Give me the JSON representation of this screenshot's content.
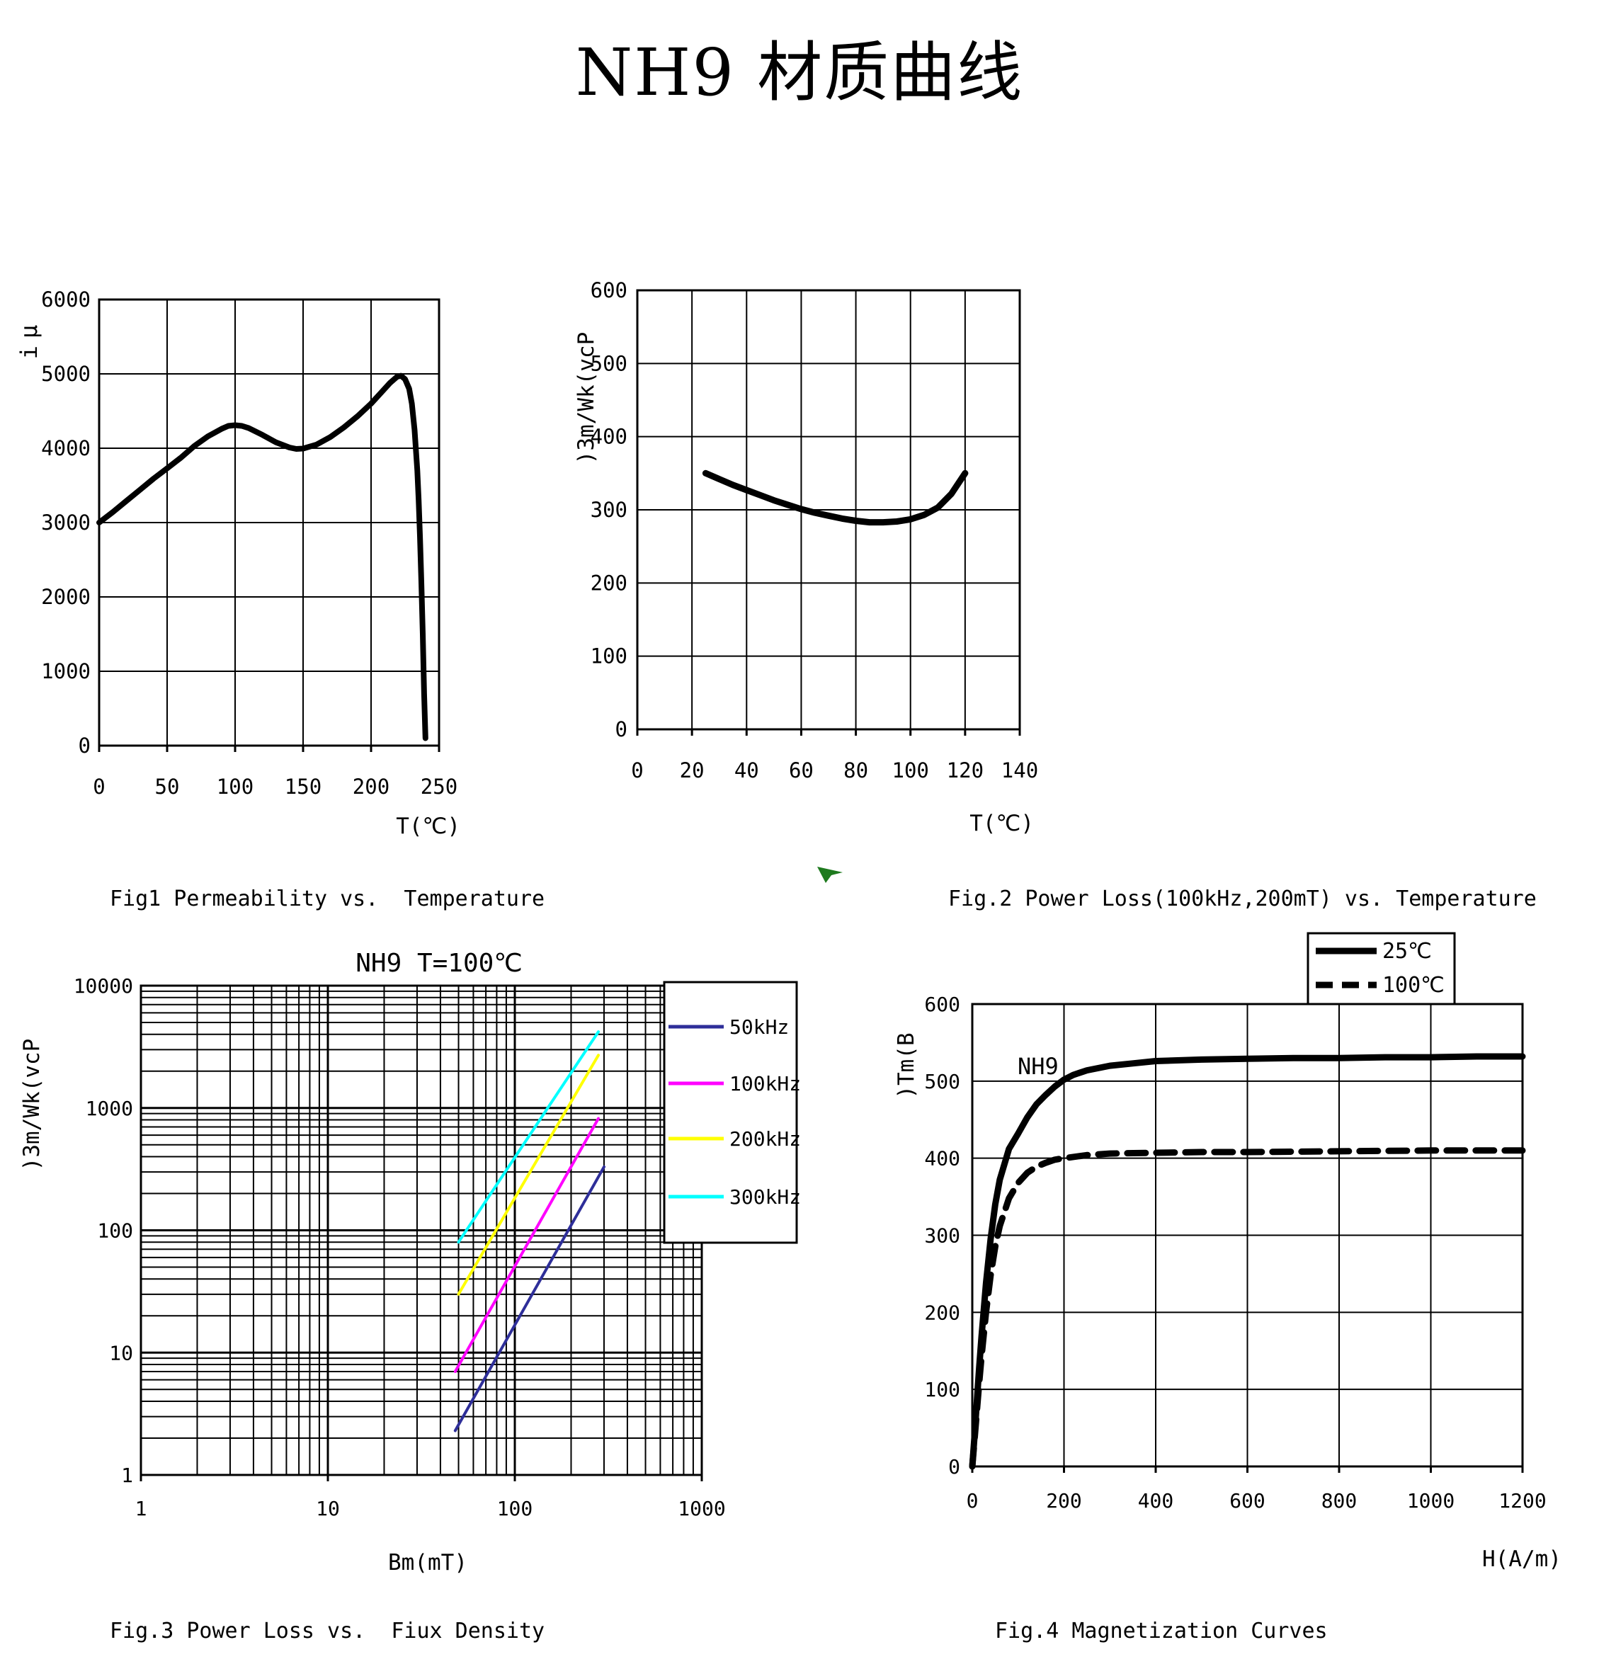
{
  "page": {
    "title": "NH9 材质曲线"
  },
  "cursor": {
    "name": "green-paste-cursor",
    "color": "#1e7a1e"
  },
  "chart_data": [
    {
      "type": "line",
      "title": "",
      "caption": "Fig1 Permeability vs.  Temperature",
      "xlabel": "T(℃)",
      "ylabel": "μi",
      "xlim": [
        0,
        250
      ],
      "ylim": [
        0,
        6000
      ],
      "xticks": [
        0,
        50,
        100,
        150,
        200,
        250
      ],
      "yticks": [
        0,
        1000,
        2000,
        3000,
        4000,
        5000,
        6000
      ],
      "grid": true,
      "legend_position": "none",
      "series": [
        {
          "name": "ui",
          "color": "#000000",
          "style": "solid",
          "points": [
            [
              0,
              3000
            ],
            [
              10,
              3140
            ],
            [
              20,
              3290
            ],
            [
              30,
              3440
            ],
            [
              40,
              3590
            ],
            [
              50,
              3730
            ],
            [
              60,
              3870
            ],
            [
              70,
              4030
            ],
            [
              80,
              4160
            ],
            [
              90,
              4260
            ],
            [
              95,
              4300
            ],
            [
              100,
              4310
            ],
            [
              105,
              4300
            ],
            [
              110,
              4270
            ],
            [
              120,
              4180
            ],
            [
              130,
              4080
            ],
            [
              140,
              4010
            ],
            [
              145,
              3990
            ],
            [
              150,
              3995
            ],
            [
              160,
              4050
            ],
            [
              170,
              4150
            ],
            [
              180,
              4280
            ],
            [
              190,
              4430
            ],
            [
              200,
              4600
            ],
            [
              208,
              4760
            ],
            [
              214,
              4880
            ],
            [
              219,
              4960
            ],
            [
              222,
              4975
            ],
            [
              225,
              4930
            ],
            [
              228,
              4800
            ],
            [
              230,
              4600
            ],
            [
              232,
              4250
            ],
            [
              234,
              3700
            ],
            [
              235,
              3300
            ],
            [
              236,
              2800
            ],
            [
              237,
              2200
            ],
            [
              238,
              1500
            ],
            [
              239,
              700
            ],
            [
              240,
              100
            ]
          ]
        }
      ]
    },
    {
      "type": "line",
      "title": "",
      "caption": "Fig.2 Power Loss(100kHz,200mT) vs. Temperature",
      "xlabel": "T(℃)",
      "ylabel": "Pcv(kW/m3)",
      "xlim": [
        0,
        140
      ],
      "ylim": [
        0,
        600
      ],
      "xticks": [
        0,
        20,
        40,
        60,
        80,
        100,
        120,
        140
      ],
      "yticks": [
        0,
        100,
        200,
        300,
        400,
        500,
        600
      ],
      "grid": true,
      "legend_position": "none",
      "series": [
        {
          "name": "Pcv",
          "color": "#000000",
          "style": "solid",
          "points": [
            [
              25,
              350
            ],
            [
              30,
              342
            ],
            [
              35,
              334
            ],
            [
              40,
              327
            ],
            [
              45,
              320
            ],
            [
              50,
              313
            ],
            [
              55,
              307
            ],
            [
              60,
              301
            ],
            [
              65,
              296
            ],
            [
              70,
              292
            ],
            [
              75,
              288
            ],
            [
              80,
              285
            ],
            [
              85,
              283
            ],
            [
              90,
              283
            ],
            [
              95,
              284
            ],
            [
              100,
              287
            ],
            [
              105,
              293
            ],
            [
              110,
              303
            ],
            [
              115,
              322
            ],
            [
              120,
              350
            ]
          ]
        }
      ]
    },
    {
      "type": "line",
      "title": "NH9  T=100℃",
      "caption": "Fig.3 Power Loss vs.  Fiux Density",
      "xlabel": "Bm(mT)",
      "ylabel": "Pcv(kW/m3)",
      "xscale": "log",
      "yscale": "log",
      "xlim": [
        1,
        1000
      ],
      "ylim": [
        1,
        10000
      ],
      "xticks": [
        1,
        10,
        100,
        1000
      ],
      "yticks": [
        1,
        10,
        100,
        1000,
        10000
      ],
      "grid": true,
      "legend_position": "right-overlay",
      "series": [
        {
          "name": "50kHz",
          "color": "#2e2e99",
          "style": "solid",
          "points": [
            [
              48,
              2.3
            ],
            [
              300,
              330
            ]
          ]
        },
        {
          "name": "100kHz",
          "color": "#ff00ff",
          "style": "solid",
          "points": [
            [
              48,
              7
            ],
            [
              280,
              820
            ]
          ]
        },
        {
          "name": "200kHz",
          "color": "#ffff00",
          "style": "solid",
          "points": [
            [
              50,
              30
            ],
            [
              280,
              2700
            ]
          ]
        },
        {
          "name": "300kHz",
          "color": "#00ffff",
          "style": "solid",
          "points": [
            [
              50,
              80
            ],
            [
              280,
              4200
            ]
          ]
        }
      ]
    },
    {
      "type": "line",
      "title": "",
      "caption": "Fig.4 Magnetization Curves",
      "xlabel": "H(A/m)",
      "ylabel": "B(mT)",
      "annotation": "NH9",
      "xlim": [
        0,
        1200
      ],
      "ylim": [
        0,
        600
      ],
      "xticks": [
        0,
        200,
        400,
        600,
        800,
        1000,
        1200
      ],
      "yticks": [
        0,
        100,
        200,
        300,
        400,
        500,
        600
      ],
      "grid": true,
      "legend_position": "top-right",
      "series": [
        {
          "name": "25℃",
          "color": "#000000",
          "style": "solid",
          "points": [
            [
              0,
              0
            ],
            [
              5,
              40
            ],
            [
              10,
              85
            ],
            [
              15,
              128
            ],
            [
              20,
              168
            ],
            [
              30,
              238
            ],
            [
              40,
              295
            ],
            [
              50,
              340
            ],
            [
              60,
              372
            ],
            [
              80,
              412
            ],
            [
              100,
              432
            ],
            [
              120,
              453
            ],
            [
              140,
              470
            ],
            [
              160,
              482
            ],
            [
              180,
              493
            ],
            [
              200,
              502
            ],
            [
              220,
              508
            ],
            [
              250,
              514
            ],
            [
              300,
              520
            ],
            [
              350,
              523
            ],
            [
              400,
              526
            ],
            [
              500,
              528
            ],
            [
              600,
              529
            ],
            [
              700,
              530
            ],
            [
              800,
              530
            ],
            [
              900,
              531
            ],
            [
              1000,
              531
            ],
            [
              1100,
              532
            ],
            [
              1200,
              532
            ]
          ]
        },
        {
          "name": "100℃",
          "color": "#000000",
          "style": "dashed",
          "points": [
            [
              0,
              0
            ],
            [
              5,
              35
            ],
            [
              10,
              72
            ],
            [
              15,
              108
            ],
            [
              20,
              142
            ],
            [
              30,
              200
            ],
            [
              40,
              248
            ],
            [
              50,
              285
            ],
            [
              60,
              312
            ],
            [
              80,
              348
            ],
            [
              100,
              368
            ],
            [
              120,
              381
            ],
            [
              140,
              389
            ],
            [
              160,
              394
            ],
            [
              180,
              398
            ],
            [
              200,
              400
            ],
            [
              250,
              404
            ],
            [
              300,
              406
            ],
            [
              400,
              407
            ],
            [
              500,
              408
            ],
            [
              600,
              408
            ],
            [
              800,
              409
            ],
            [
              1000,
              410
            ],
            [
              1200,
              410
            ]
          ]
        }
      ]
    }
  ]
}
